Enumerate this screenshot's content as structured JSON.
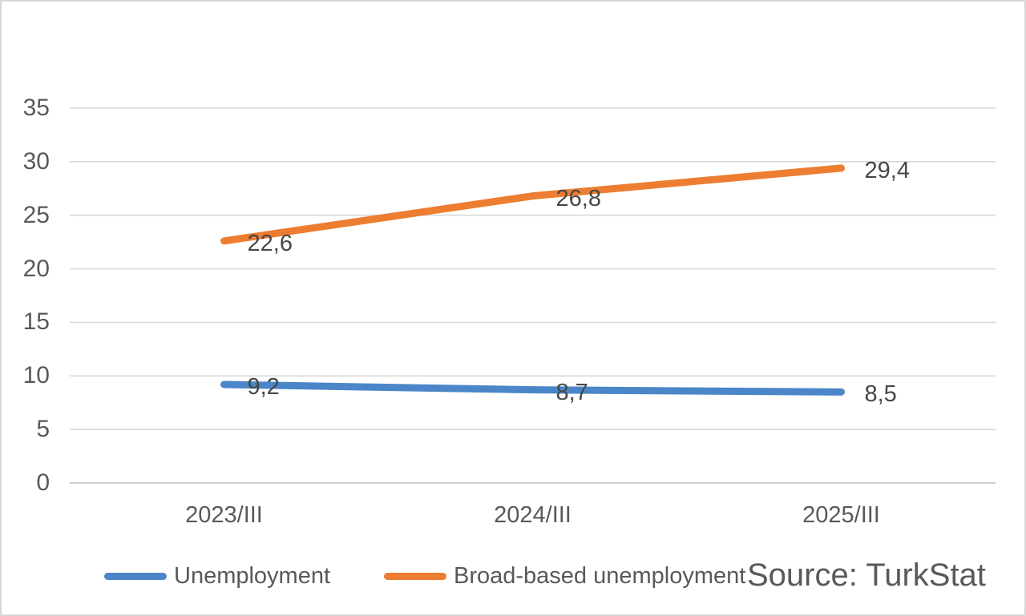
{
  "chart_data": {
    "type": "line",
    "title": "",
    "categories": [
      "2023/III",
      "2024/III",
      "2025/III"
    ],
    "series": [
      {
        "name": "Unemployment",
        "values": [
          9.2,
          8.7,
          8.5
        ],
        "labels": [
          "9,2",
          "8,7",
          "8,5"
        ],
        "color": "#4A86C8"
      },
      {
        "name": "Broad-based unemployment",
        "values": [
          22.6,
          26.8,
          29.4
        ],
        "labels": [
          "22,6",
          "26,8",
          "29,4"
        ],
        "color": "#ED7D31"
      }
    ],
    "xlabel": "",
    "ylabel": "",
    "ylim": [
      0,
      35
    ],
    "yticks": [
      0,
      5,
      10,
      15,
      20,
      25,
      30,
      35
    ],
    "grid": true,
    "legend_position": "bottom",
    "grid_color": "#D9D9D9",
    "axis_line_color": "#BFBFBF",
    "tick_text_color": "#595959",
    "data_label_color": "#474747"
  },
  "source": {
    "label": "Source: TurkStat"
  }
}
